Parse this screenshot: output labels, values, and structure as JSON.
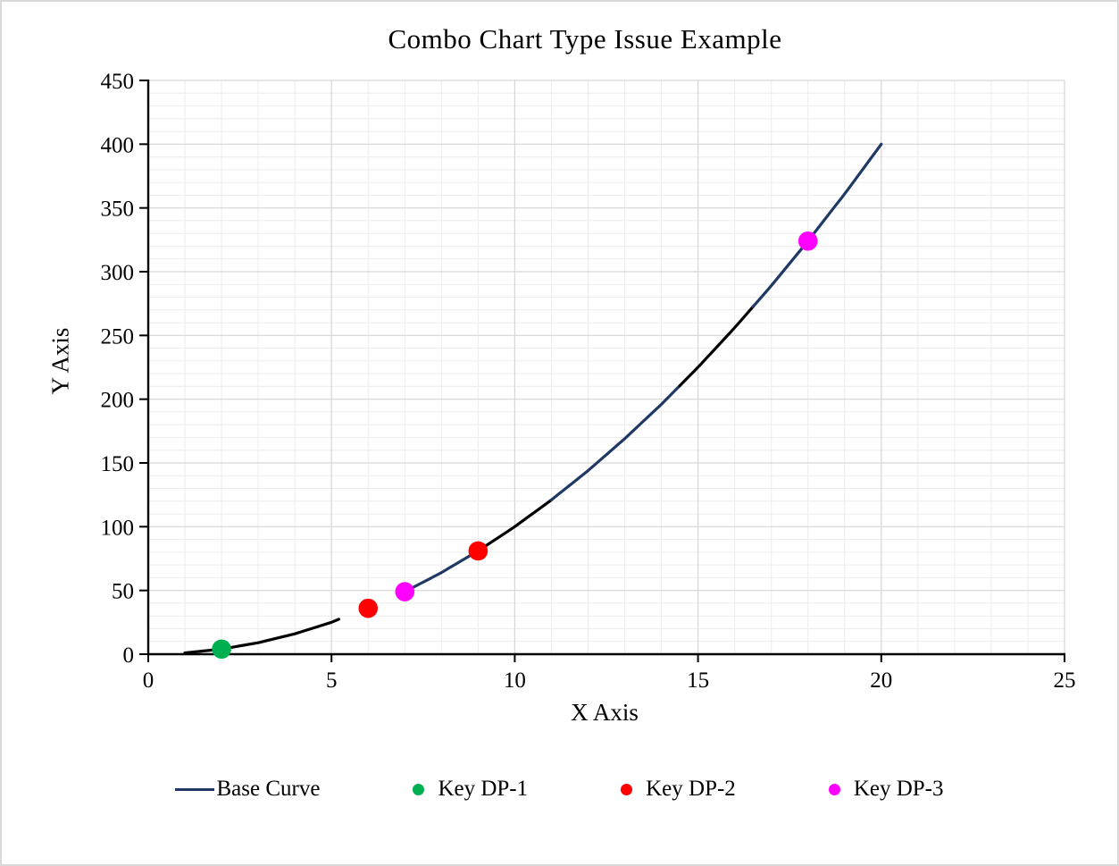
{
  "window": {
    "background": "#ffffff",
    "border_color": "#d9d9d9"
  },
  "title": "Combo Chart Type Issue Example",
  "x_axis": {
    "label": "X Axis",
    "min": 0,
    "max": 25,
    "major_step": 5,
    "minor_step": 1,
    "ticks": [
      "0",
      "5",
      "10",
      "15",
      "20",
      "25"
    ]
  },
  "y_axis": {
    "label": "Y Axis",
    "min": 0,
    "max": 450,
    "major_step": 50,
    "minor_step": 10,
    "ticks": [
      "0",
      "50",
      "100",
      "150",
      "200",
      "250",
      "300",
      "350",
      "400",
      "450"
    ]
  },
  "grid": {
    "major_color": "#d6d6d6",
    "minor_color": "#ececec",
    "axis_color": "#000000"
  },
  "legend": {
    "position": "bottom",
    "items": [
      {
        "label": "Base Curve",
        "marker": "line",
        "color": "#1f3864"
      },
      {
        "label": "Key DP-1",
        "marker": "circle",
        "color": "#00b050"
      },
      {
        "label": "Key DP-2",
        "marker": "circle",
        "color": "#ff0000"
      },
      {
        "label": "Key DP-3",
        "marker": "circle",
        "color": "#ff00ff"
      }
    ]
  },
  "chart_data": {
    "type": "combo",
    "title": "Combo Chart Type Issue Example",
    "xlabel": "X Axis",
    "ylabel": "Y Axis",
    "xlim": [
      0,
      25
    ],
    "ylim": [
      0,
      450
    ],
    "grid": "major+minor",
    "legend_position": "bottom",
    "series": [
      {
        "name": "Base Curve",
        "type": "line",
        "color": "#1f3864",
        "x": [
          1,
          2,
          3,
          4,
          5,
          7,
          8,
          9,
          10,
          11,
          12,
          13,
          14,
          15,
          16,
          17,
          18,
          19,
          20
        ],
        "y": [
          1,
          4,
          9,
          16,
          25,
          49,
          64,
          81,
          100,
          121,
          144,
          169,
          196,
          225,
          256,
          289,
          324,
          361,
          400
        ],
        "gap_x_range": [
          5.2,
          7
        ],
        "segment_colors": [
          {
            "from": 1,
            "to": 5.2,
            "color": "#000000"
          },
          {
            "from": 7,
            "to": 9,
            "color": "#1f3864"
          },
          {
            "from": 9,
            "to": 11,
            "color": "#000000"
          },
          {
            "from": 11,
            "to": 14.5,
            "color": "#1f3864"
          },
          {
            "from": 14.5,
            "to": 16.5,
            "color": "#000000"
          },
          {
            "from": 16.5,
            "to": 20,
            "color": "#1f3864"
          }
        ]
      },
      {
        "name": "Key DP-1",
        "type": "scatter",
        "color": "#00b050",
        "points": [
          [
            2,
            4
          ]
        ]
      },
      {
        "name": "Key DP-2",
        "type": "scatter",
        "color": "#ff0000",
        "points": [
          [
            6,
            36
          ],
          [
            9,
            81
          ]
        ]
      },
      {
        "name": "Key DP-3",
        "type": "scatter",
        "color": "#ff00ff",
        "points": [
          [
            7,
            49
          ],
          [
            18,
            324
          ]
        ]
      }
    ]
  }
}
